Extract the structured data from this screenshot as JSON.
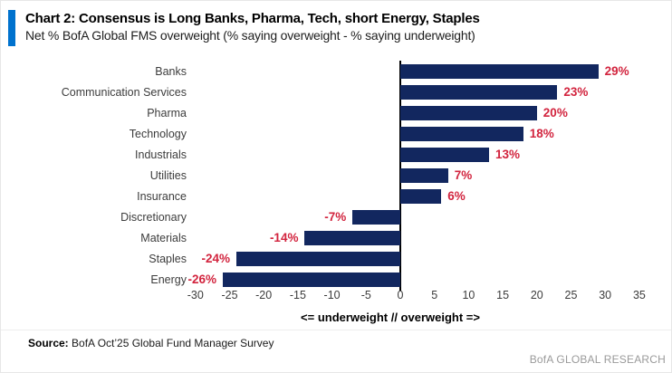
{
  "header": {
    "title": "Chart 2: Consensus is Long Banks, Pharma, Tech, short Energy, Staples",
    "subtitle": "Net % BofA Global FMS overweight (% saying overweight - % saying underweight)"
  },
  "chart_data": {
    "type": "bar",
    "orientation": "horizontal",
    "title": "Chart 2: Consensus is Long Banks, Pharma, Tech, short Energy, Staples",
    "subtitle": "Net % BofA Global FMS overweight (% saying overweight - % saying underweight)",
    "categories": [
      "Banks",
      "Communication Services",
      "Pharma",
      "Technology",
      "Industrials",
      "Utilities",
      "Insurance",
      "Discretionary",
      "Materials",
      "Staples",
      "Energy"
    ],
    "values": [
      29,
      23,
      20,
      18,
      13,
      7,
      6,
      -7,
      -14,
      -24,
      -26
    ],
    "value_labels": [
      "29%",
      "23%",
      "20%",
      "18%",
      "13%",
      "7%",
      "6%",
      "-7%",
      "-14%",
      "-24%",
      "-26%"
    ],
    "x_ticks": [
      -30,
      -25,
      -20,
      -15,
      -10,
      -5,
      0,
      5,
      10,
      15,
      20,
      25,
      30,
      35
    ],
    "xlim": [
      -30,
      35
    ],
    "xlabel": "<= underweight // overweight =>",
    "grid": false,
    "legend": "none",
    "bar_color": "#12275F",
    "value_label_color": "#D2243E",
    "axis_line_color": "#000000"
  },
  "footer": {
    "source_label": "Source:",
    "source_text": " BofA Oct’25 Global Fund Manager Survey",
    "branding": "BofA GLOBAL RESEARCH"
  },
  "accent_color": "#0072CE"
}
